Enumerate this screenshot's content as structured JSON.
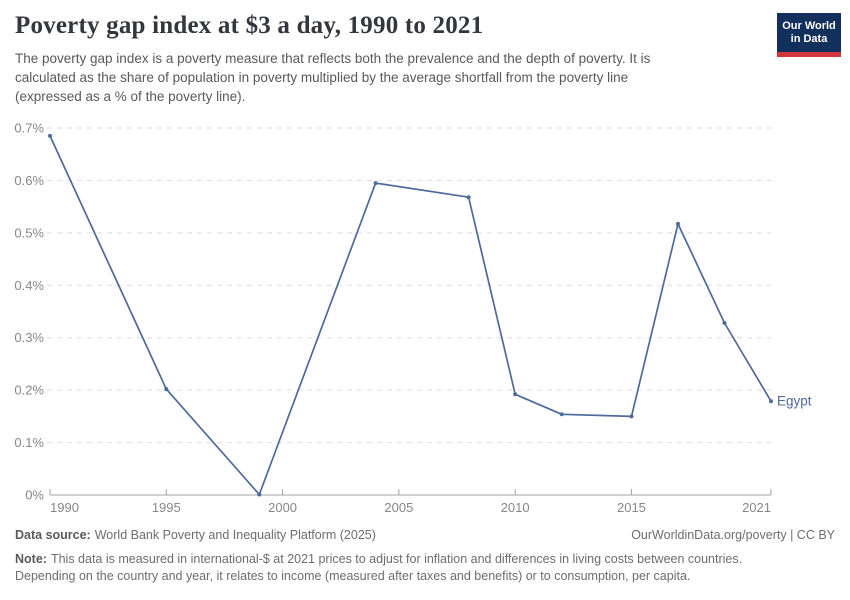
{
  "header": {
    "title": "Poverty gap index at $3 a day, 1990 to 2021",
    "subtitle_lines": [
      "The poverty gap index is a poverty measure that reflects both the prevalence and the depth of poverty. It is",
      "calculated as the share of population in poverty multiplied by the average shortfall from the poverty line",
      "(expressed as a % of the poverty line)."
    ],
    "logo": {
      "line1": "Our World",
      "line2": "in Data"
    }
  },
  "footer": {
    "source_label": "Data source:",
    "source_text": "World Bank Poverty and Inequality Platform (2025)",
    "credit": "OurWorldinData.org/poverty | CC BY",
    "note_label": "Note:",
    "note_line1": "This data is measured in international-$ at 2021 prices to adjust for inflation and differences in living costs between countries.",
    "note_line2": "Depending on the country and year, it relates to income (measured after taxes and benefits) or to consumption, per capita."
  },
  "chart_data": {
    "type": "line",
    "title": "Poverty gap index at $3 a day, 1990 to 2021",
    "xlabel": "",
    "ylabel": "",
    "unit": "%",
    "xlim": [
      1990,
      2021
    ],
    "ylim": [
      0,
      0.7
    ],
    "xticks": [
      1990,
      1995,
      2000,
      2005,
      2010,
      2015,
      2021
    ],
    "xtick_labels": [
      "1990",
      "1995",
      "2000",
      "2005",
      "2010",
      "2015",
      "2021"
    ],
    "yticks": [
      0,
      0.1,
      0.2,
      0.3,
      0.4,
      0.5,
      0.6,
      0.7
    ],
    "ytick_labels": [
      "0%",
      "0.1%",
      "0.2%",
      "0.3%",
      "0.4%",
      "0.5%",
      "0.6%",
      "0.7%"
    ],
    "grid": true,
    "legend_position": "end-of-line",
    "series": [
      {
        "name": "Egypt",
        "color": "#4c6a9c",
        "points": [
          [
            1990,
            0.685
          ],
          [
            1995,
            0.202
          ],
          [
            1999,
            0.001
          ],
          [
            2004,
            0.595
          ],
          [
            2008,
            0.568
          ],
          [
            2010,
            0.192
          ],
          [
            2012,
            0.154
          ],
          [
            2015,
            0.15
          ],
          [
            2017,
            0.517
          ],
          [
            2019,
            0.328
          ],
          [
            2021,
            0.179
          ]
        ]
      }
    ]
  },
  "colors": {
    "accent_blue": "#4c6a9c",
    "logo_navy": "#12305b",
    "logo_red": "#d2353c",
    "grid": "#dddddd",
    "axis": "#a3a3a3",
    "tick_label": "#878787"
  }
}
